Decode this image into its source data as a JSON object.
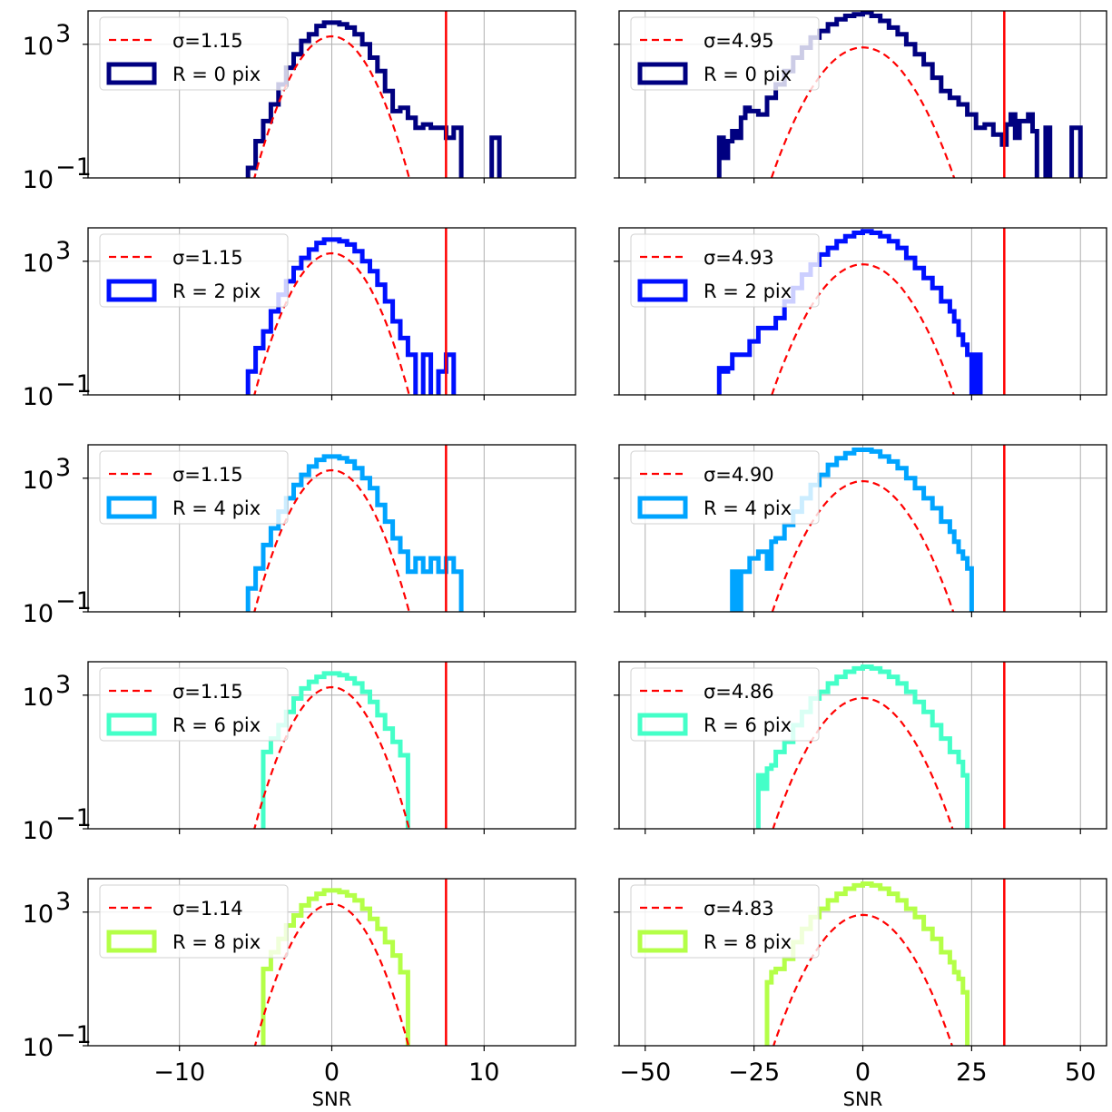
{
  "chart_data": [
    {
      "type": "histogram",
      "panel": "left",
      "row": 0,
      "xlim": [
        -16,
        16
      ],
      "ylim_log10": [
        -1,
        4
      ],
      "yscale": "log",
      "vline": 7.5,
      "sigma": 1.15,
      "sigma_label": "σ=1.15",
      "hist_label": "R = 0 pix",
      "color": "#000080",
      "bins": [
        [
          -5.5,
          -0.7
        ],
        [
          -5,
          0.1
        ],
        [
          -4.5,
          0.7
        ],
        [
          -4,
          1.2
        ],
        [
          -3.5,
          1.8
        ],
        [
          -3,
          2.3
        ],
        [
          -2.5,
          2.7
        ],
        [
          -2,
          3.1
        ],
        [
          -1.5,
          3.3
        ],
        [
          -1,
          3.55
        ],
        [
          -0.5,
          3.65
        ],
        [
          0,
          3.65
        ],
        [
          0.5,
          3.6
        ],
        [
          1,
          3.5
        ],
        [
          1.5,
          3.3
        ],
        [
          2,
          3.0
        ],
        [
          2.5,
          2.6
        ],
        [
          3,
          2.2
        ],
        [
          3.5,
          1.6
        ],
        [
          4,
          1.0
        ],
        [
          4.5,
          1.1
        ],
        [
          5,
          0.8
        ],
        [
          5.5,
          0.5
        ],
        [
          6,
          0.6
        ],
        [
          6.5,
          0.5
        ],
        [
          7,
          0.5
        ],
        [
          7.5,
          0.2
        ],
        [
          8,
          0.5
        ],
        [
          8.5,
          -1
        ],
        [
          9,
          -1
        ],
        [
          9.5,
          -1
        ],
        [
          10,
          -1
        ],
        [
          10.5,
          0.2
        ],
        [
          11,
          -1
        ]
      ]
    },
    {
      "type": "histogram",
      "panel": "right",
      "row": 0,
      "xlim": [
        -56,
        56
      ],
      "ylim_log10": [
        -1,
        4
      ],
      "yscale": "log",
      "vline": 32.5,
      "sigma": 4.95,
      "sigma_label": "σ=4.95",
      "hist_label": "R = 0 pix",
      "color": "#000080",
      "bins": [
        [
          -33,
          0.2
        ],
        [
          -32,
          -0.4
        ],
        [
          -31,
          0.1
        ],
        [
          -30,
          0.4
        ],
        [
          -29,
          0.2
        ],
        [
          -28,
          0.8
        ],
        [
          -27,
          1.1
        ],
        [
          -26,
          1.0
        ],
        [
          -24,
          0.9
        ],
        [
          -22,
          1.4
        ],
        [
          -20,
          1.8
        ],
        [
          -18,
          2.2
        ],
        [
          -16,
          2.6
        ],
        [
          -14,
          2.9
        ],
        [
          -12,
          3.2
        ],
        [
          -10,
          3.4
        ],
        [
          -8,
          3.6
        ],
        [
          -6,
          3.75
        ],
        [
          -4,
          3.85
        ],
        [
          -2,
          3.9
        ],
        [
          0,
          3.95
        ],
        [
          2,
          3.85
        ],
        [
          4,
          3.7
        ],
        [
          6,
          3.5
        ],
        [
          8,
          3.3
        ],
        [
          10,
          3.0
        ],
        [
          12,
          2.7
        ],
        [
          14,
          2.4
        ],
        [
          16,
          2.0
        ],
        [
          18,
          1.6
        ],
        [
          20,
          1.4
        ],
        [
          22,
          1.2
        ],
        [
          24,
          0.9
        ],
        [
          26,
          0.5
        ],
        [
          28,
          0.6
        ],
        [
          30,
          0.3
        ],
        [
          32,
          0.0
        ],
        [
          33,
          0.6
        ],
        [
          34,
          0.9
        ],
        [
          35,
          0.2
        ],
        [
          36,
          0.7
        ],
        [
          38,
          0.9
        ],
        [
          39,
          0.4
        ],
        [
          40,
          -1
        ],
        [
          42,
          0.5
        ],
        [
          43,
          -1
        ],
        [
          48,
          0.5
        ],
        [
          50,
          -1
        ]
      ]
    },
    {
      "type": "histogram",
      "panel": "left",
      "row": 1,
      "xlim": [
        -16,
        16
      ],
      "ylim_log10": [
        -1,
        4
      ],
      "yscale": "log",
      "vline": 7.5,
      "sigma": 1.15,
      "sigma_label": "σ=1.15",
      "hist_label": "R = 2 pix",
      "color": "#0010ff",
      "bins": [
        [
          -5.5,
          -0.3
        ],
        [
          -5,
          0.4
        ],
        [
          -4.5,
          0.9
        ],
        [
          -4,
          1.5
        ],
        [
          -3.5,
          2.0
        ],
        [
          -3,
          2.4
        ],
        [
          -2.5,
          2.8
        ],
        [
          -2,
          3.1
        ],
        [
          -1.5,
          3.35
        ],
        [
          -1,
          3.55
        ],
        [
          -0.5,
          3.65
        ],
        [
          0,
          3.65
        ],
        [
          0.5,
          3.6
        ],
        [
          1,
          3.5
        ],
        [
          1.5,
          3.3
        ],
        [
          2,
          3.0
        ],
        [
          2.5,
          2.7
        ],
        [
          3,
          2.3
        ],
        [
          3.5,
          1.8
        ],
        [
          4,
          1.2
        ],
        [
          4.5,
          0.7
        ],
        [
          5,
          0.2
        ],
        [
          5.5,
          -1
        ],
        [
          6,
          0.2
        ],
        [
          6.5,
          -1
        ],
        [
          7,
          -0.3
        ],
        [
          7.5,
          0.2
        ],
        [
          8,
          -1
        ]
      ]
    },
    {
      "type": "histogram",
      "panel": "right",
      "row": 1,
      "xlim": [
        -56,
        56
      ],
      "ylim_log10": [
        -1,
        4
      ],
      "yscale": "log",
      "vline": 32.5,
      "sigma": 4.93,
      "sigma_label": "σ=4.93",
      "hist_label": "R = 2 pix",
      "color": "#0010ff",
      "bins": [
        [
          -33,
          -0.2
        ],
        [
          -32,
          -0.3
        ],
        [
          -31,
          -0.2
        ],
        [
          -30,
          0.2
        ],
        [
          -28,
          0.2
        ],
        [
          -26,
          0.6
        ],
        [
          -24,
          1.0
        ],
        [
          -22,
          1.0
        ],
        [
          -20,
          1.3
        ],
        [
          -18,
          1.8
        ],
        [
          -16,
          2.2
        ],
        [
          -14,
          2.6
        ],
        [
          -12,
          2.9
        ],
        [
          -10,
          3.2
        ],
        [
          -8,
          3.4
        ],
        [
          -6,
          3.6
        ],
        [
          -4,
          3.75
        ],
        [
          -2,
          3.85
        ],
        [
          0,
          3.9
        ],
        [
          2,
          3.85
        ],
        [
          4,
          3.75
        ],
        [
          6,
          3.6
        ],
        [
          8,
          3.4
        ],
        [
          10,
          3.1
        ],
        [
          12,
          2.8
        ],
        [
          14,
          2.5
        ],
        [
          16,
          2.2
        ],
        [
          18,
          1.8
        ],
        [
          20,
          1.5
        ],
        [
          21,
          1.2
        ],
        [
          22,
          0.8
        ],
        [
          23,
          0.5
        ],
        [
          24,
          0.2
        ],
        [
          25,
          -1
        ],
        [
          26,
          0.2
        ],
        [
          27,
          -1
        ]
      ]
    },
    {
      "type": "histogram",
      "panel": "left",
      "row": 2,
      "xlim": [
        -16,
        16
      ],
      "ylim_log10": [
        -1,
        4
      ],
      "yscale": "log",
      "vline": 7.5,
      "sigma": 1.15,
      "sigma_label": "σ=1.15",
      "hist_label": "R = 4 pix",
      "color": "#00a4ff",
      "bins": [
        [
          -5.5,
          -0.3
        ],
        [
          -5,
          0.3
        ],
        [
          -4.5,
          1.0
        ],
        [
          -4,
          1.5
        ],
        [
          -3.5,
          2.0
        ],
        [
          -3,
          2.4
        ],
        [
          -2.5,
          2.8
        ],
        [
          -2,
          3.1
        ],
        [
          -1.5,
          3.35
        ],
        [
          -1,
          3.55
        ],
        [
          -0.5,
          3.65
        ],
        [
          0,
          3.65
        ],
        [
          0.5,
          3.6
        ],
        [
          1,
          3.5
        ],
        [
          1.5,
          3.3
        ],
        [
          2,
          3.0
        ],
        [
          2.5,
          2.7
        ],
        [
          3,
          2.2
        ],
        [
          3.5,
          1.7
        ],
        [
          4,
          1.2
        ],
        [
          4.5,
          0.8
        ],
        [
          5,
          0.2
        ],
        [
          5.5,
          0.6
        ],
        [
          6,
          0.2
        ],
        [
          6.5,
          0.6
        ],
        [
          7,
          0.2
        ],
        [
          7.5,
          0.6
        ],
        [
          8,
          0.2
        ],
        [
          8.5,
          -1
        ]
      ]
    },
    {
      "type": "histogram",
      "panel": "right",
      "row": 2,
      "xlim": [
        -56,
        56
      ],
      "ylim_log10": [
        -1,
        4
      ],
      "yscale": "log",
      "vline": 32.5,
      "sigma": 4.9,
      "sigma_label": "σ=4.90",
      "hist_label": "R = 4 pix",
      "color": "#00a4ff",
      "bins": [
        [
          -30,
          0.2
        ],
        [
          -29,
          -1
        ],
        [
          -28,
          0.2
        ],
        [
          -26,
          0.6
        ],
        [
          -24,
          0.8
        ],
        [
          -22,
          0.3
        ],
        [
          -21,
          1.1
        ],
        [
          -20,
          1.2
        ],
        [
          -18,
          1.6
        ],
        [
          -16,
          2.0
        ],
        [
          -14,
          2.4
        ],
        [
          -12,
          2.8
        ],
        [
          -10,
          3.1
        ],
        [
          -8,
          3.4
        ],
        [
          -6,
          3.6
        ],
        [
          -4,
          3.75
        ],
        [
          -2,
          3.85
        ],
        [
          0,
          3.85
        ],
        [
          2,
          3.8
        ],
        [
          4,
          3.65
        ],
        [
          6,
          3.5
        ],
        [
          8,
          3.3
        ],
        [
          10,
          3.0
        ],
        [
          12,
          2.7
        ],
        [
          14,
          2.4
        ],
        [
          16,
          2.1
        ],
        [
          18,
          1.7
        ],
        [
          20,
          1.4
        ],
        [
          21,
          1.1
        ],
        [
          22,
          0.8
        ],
        [
          23,
          0.6
        ],
        [
          24,
          0.3
        ],
        [
          25,
          -1
        ]
      ]
    },
    {
      "type": "histogram",
      "panel": "left",
      "row": 3,
      "xlim": [
        -16,
        16
      ],
      "ylim_log10": [
        -1,
        4
      ],
      "yscale": "log",
      "vline": 7.5,
      "sigma": 1.15,
      "sigma_label": "σ=1.15",
      "hist_label": "R = 6 pix",
      "color": "#44ffc8",
      "bins": [
        [
          -4.5,
          1.3
        ],
        [
          -4,
          1.7
        ],
        [
          -3.5,
          2.1
        ],
        [
          -3,
          2.5
        ],
        [
          -2.5,
          2.9
        ],
        [
          -2,
          3.2
        ],
        [
          -1.5,
          3.4
        ],
        [
          -1,
          3.55
        ],
        [
          -0.5,
          3.65
        ],
        [
          0,
          3.65
        ],
        [
          0.5,
          3.6
        ],
        [
          1,
          3.5
        ],
        [
          1.5,
          3.35
        ],
        [
          2,
          3.1
        ],
        [
          2.5,
          2.8
        ],
        [
          3,
          2.4
        ],
        [
          3.5,
          2.0
        ],
        [
          4,
          1.6
        ],
        [
          4.5,
          1.2
        ],
        [
          5,
          -1
        ]
      ]
    },
    {
      "type": "histogram",
      "panel": "right",
      "row": 3,
      "xlim": [
        -56,
        56
      ],
      "ylim_log10": [
        -1,
        4
      ],
      "yscale": "log",
      "vline": 32.5,
      "sigma": 4.86,
      "sigma_label": "σ=4.86",
      "hist_label": "R = 6 pix",
      "color": "#44ffc8",
      "bins": [
        [
          -24,
          0.6
        ],
        [
          -23,
          0.2
        ],
        [
          -22,
          0.8
        ],
        [
          -21,
          0.9
        ],
        [
          -20,
          1.3
        ],
        [
          -18,
          1.6
        ],
        [
          -16,
          2.1
        ],
        [
          -14,
          2.5
        ],
        [
          -12,
          2.9
        ],
        [
          -10,
          3.1
        ],
        [
          -8,
          3.35
        ],
        [
          -6,
          3.55
        ],
        [
          -4,
          3.7
        ],
        [
          -2,
          3.8
        ],
        [
          0,
          3.85
        ],
        [
          2,
          3.8
        ],
        [
          4,
          3.7
        ],
        [
          6,
          3.55
        ],
        [
          8,
          3.35
        ],
        [
          10,
          3.1
        ],
        [
          12,
          2.8
        ],
        [
          14,
          2.5
        ],
        [
          16,
          2.1
        ],
        [
          18,
          1.7
        ],
        [
          20,
          1.3
        ],
        [
          22,
          1.0
        ],
        [
          23,
          0.6
        ],
        [
          24,
          -1
        ]
      ]
    },
    {
      "type": "histogram",
      "panel": "left",
      "row": 4,
      "xlim": [
        -16,
        16
      ],
      "ylim_log10": [
        -1,
        4
      ],
      "yscale": "log",
      "vline": 7.5,
      "sigma": 1.14,
      "sigma_label": "σ=1.14",
      "hist_label": "R = 8 pix",
      "color": "#b4ff48",
      "bins": [
        [
          -4.5,
          1.3
        ],
        [
          -4,
          1.8
        ],
        [
          -3.5,
          2.2
        ],
        [
          -3,
          2.6
        ],
        [
          -2.5,
          2.9
        ],
        [
          -2,
          3.2
        ],
        [
          -1.5,
          3.4
        ],
        [
          -1,
          3.55
        ],
        [
          -0.5,
          3.65
        ],
        [
          0,
          3.65
        ],
        [
          0.5,
          3.6
        ],
        [
          1,
          3.5
        ],
        [
          1.5,
          3.35
        ],
        [
          2,
          3.1
        ],
        [
          2.5,
          2.8
        ],
        [
          3,
          2.5
        ],
        [
          3.5,
          2.1
        ],
        [
          4,
          1.7
        ],
        [
          4.5,
          1.2
        ],
        [
          5,
          -1
        ]
      ]
    },
    {
      "type": "histogram",
      "panel": "right",
      "row": 4,
      "xlim": [
        -56,
        56
      ],
      "ylim_log10": [
        -1,
        4
      ],
      "yscale": "log",
      "vline": 32.5,
      "sigma": 4.83,
      "sigma_label": "σ=4.83",
      "hist_label": "R = 8 pix",
      "color": "#b4ff48",
      "bins": [
        [
          -22,
          0.9
        ],
        [
          -21,
          1.2
        ],
        [
          -20,
          1.3
        ],
        [
          -18,
          1.6
        ],
        [
          -16,
          2.1
        ],
        [
          -14,
          2.5
        ],
        [
          -12,
          2.85
        ],
        [
          -10,
          3.1
        ],
        [
          -8,
          3.35
        ],
        [
          -6,
          3.55
        ],
        [
          -4,
          3.7
        ],
        [
          -2,
          3.8
        ],
        [
          0,
          3.85
        ],
        [
          2,
          3.8
        ],
        [
          4,
          3.7
        ],
        [
          6,
          3.55
        ],
        [
          8,
          3.35
        ],
        [
          10,
          3.1
        ],
        [
          12,
          2.85
        ],
        [
          14,
          2.5
        ],
        [
          16,
          2.2
        ],
        [
          18,
          1.8
        ],
        [
          20,
          1.5
        ],
        [
          21,
          1.2
        ],
        [
          22,
          1.0
        ],
        [
          23,
          0.6
        ],
        [
          24,
          -1
        ]
      ]
    }
  ],
  "axes": {
    "left_xticks": [
      {
        "v": -10,
        "label": "−10"
      },
      {
        "v": 0,
        "label": "0"
      },
      {
        "v": 10,
        "label": "10"
      }
    ],
    "right_xticks": [
      {
        "v": -50,
        "label": "−50"
      },
      {
        "v": -25,
        "label": "−25"
      },
      {
        "v": 0,
        "label": "0"
      },
      {
        "v": 25,
        "label": "25"
      },
      {
        "v": 50,
        "label": "50"
      }
    ],
    "ytick_upper": {
      "base": "10",
      "exp": "3"
    },
    "ytick_lower": {
      "base": "10",
      "exp": "−1"
    },
    "xlabel": "SNR"
  },
  "colors": {
    "fit_line": "#ff0000",
    "vline": "#ff0000",
    "grid": "#b0b0b0"
  }
}
